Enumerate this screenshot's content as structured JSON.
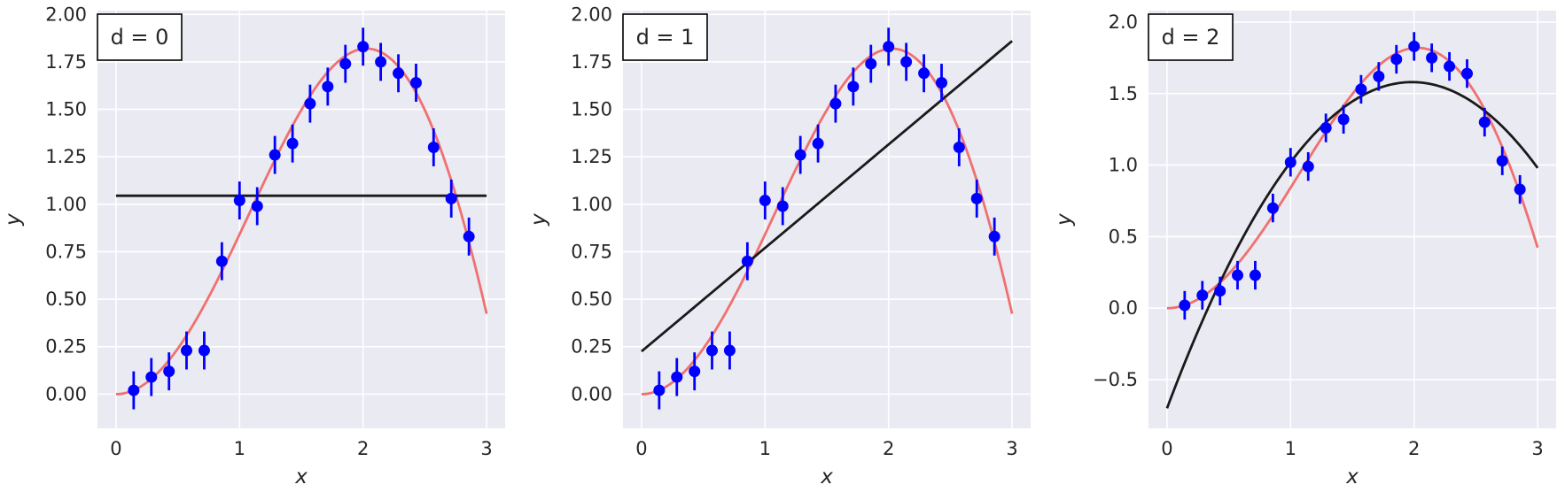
{
  "colors": {
    "background": "#eaeaf2",
    "grid": "#ffffff",
    "true_curve": "#f07070",
    "fit_line": "#1a1a1a",
    "points": "#0000ff",
    "label_box_border": "#000000"
  },
  "chart_data": [
    {
      "type": "scatter",
      "box_label": "d = 0",
      "xlabel": "x",
      "ylabel": "y",
      "xlim": [
        -0.15,
        3.15
      ],
      "ylim": [
        -0.18,
        2.02
      ],
      "xticks": [
        0,
        1,
        2,
        3
      ],
      "xtick_labels": [
        "0",
        "1",
        "2",
        "3"
      ],
      "yticks": [
        0,
        0.25,
        0.5,
        0.75,
        1.0,
        1.25,
        1.5,
        1.75,
        2.0
      ],
      "ytick_labels": [
        "0.00",
        "0.25",
        "0.50",
        "0.75",
        "1.00",
        "1.25",
        "1.50",
        "1.75",
        "2.00"
      ],
      "grid": true,
      "fit_coeffs": [
        1.045
      ]
    },
    {
      "type": "scatter",
      "box_label": "d = 1",
      "xlabel": "x",
      "ylabel": "y",
      "xlim": [
        -0.15,
        3.15
      ],
      "ylim": [
        -0.18,
        2.02
      ],
      "xticks": [
        0,
        1,
        2,
        3
      ],
      "xtick_labels": [
        "0",
        "1",
        "2",
        "3"
      ],
      "yticks": [
        0,
        0.25,
        0.5,
        0.75,
        1.0,
        1.25,
        1.5,
        1.75,
        2.0
      ],
      "ytick_labels": [
        "0.00",
        "0.25",
        "0.50",
        "0.75",
        "1.00",
        "1.25",
        "1.50",
        "1.75",
        "2.00"
      ],
      "grid": true,
      "fit_coeffs": [
        0.225,
        0.545
      ]
    },
    {
      "type": "scatter",
      "box_label": "d = 2",
      "xlabel": "x",
      "ylabel": "y",
      "xlim": [
        -0.15,
        3.15
      ],
      "ylim": [
        -0.84,
        2.08
      ],
      "xticks": [
        0,
        1,
        2,
        3
      ],
      "xtick_labels": [
        "0",
        "1",
        "2",
        "3"
      ],
      "yticks": [
        -0.5,
        0,
        0.5,
        1.0,
        1.5,
        2.0
      ],
      "ytick_labels": [
        "−0.5",
        "0.0",
        "0.5",
        "1.0",
        "1.5",
        "2.0"
      ],
      "grid": true,
      "fit_coeffs": [
        -0.7,
        2.3,
        -0.58
      ]
    }
  ],
  "series": {
    "data_points": {
      "x": [
        0.143,
        0.286,
        0.429,
        0.571,
        0.714,
        0.857,
        1.0,
        1.143,
        1.286,
        1.429,
        1.571,
        1.714,
        1.857,
        2.0,
        2.143,
        2.286,
        2.429,
        2.571,
        2.714,
        2.857
      ],
      "y": [
        0.02,
        0.09,
        0.12,
        0.23,
        0.23,
        0.7,
        1.02,
        0.99,
        1.26,
        1.32,
        1.53,
        1.62,
        1.74,
        1.83,
        1.75,
        1.69,
        1.64,
        1.3,
        1.03,
        0.83
      ],
      "error": 0.1
    },
    "true_curve": {
      "function": "x * sin(x)",
      "x_range": [
        0,
        3
      ]
    }
  }
}
